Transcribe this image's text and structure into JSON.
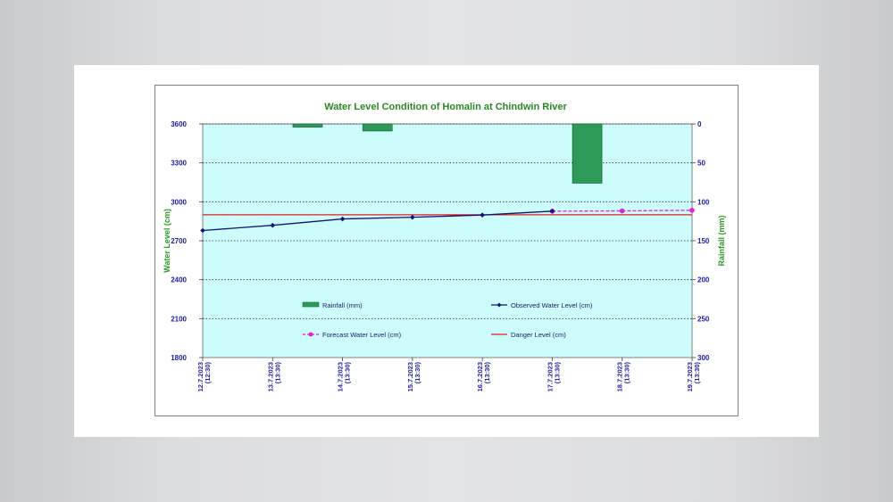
{
  "chart_data": {
    "type": "bar+line",
    "title": "Water Level Condition of Homalin at Chindwin River",
    "ylabel_left": "Water Level (cm)",
    "ylabel_right": "Rainfall (mm)",
    "ylim_left": [
      1800,
      3600
    ],
    "yticks_left": [
      1800,
      2100,
      2400,
      2700,
      3000,
      3300,
      3600
    ],
    "ylim_right": [
      300,
      0
    ],
    "yticks_right": [
      0,
      50,
      100,
      150,
      200,
      250,
      300
    ],
    "right_axis_inverted": true,
    "grid": "horizontal dotted",
    "categories": [
      [
        "12.7.2023",
        "(12:30)"
      ],
      [
        "13.7.2023",
        "(13:30)"
      ],
      [
        "14.7.2023",
        "(13:30)"
      ],
      [
        "15.7.2023",
        "(13:30)"
      ],
      [
        "16.7.2023",
        "(13:30)"
      ],
      [
        "17.7.2023",
        "(13:30)"
      ],
      [
        "18.7.2023",
        "(13:30)"
      ],
      [
        "19.7.2023",
        "(13:30)"
      ]
    ],
    "series": [
      {
        "name": "Rainfall (mm)",
        "type": "bar",
        "axis": "right",
        "values": [
          0,
          4,
          9,
          0,
          0,
          76,
          0,
          0
        ]
      },
      {
        "name": "Observed Water Level (cm)",
        "type": "line",
        "axis": "left",
        "values": [
          2779,
          2819,
          2868,
          2881,
          2898,
          2928,
          null,
          null
        ]
      },
      {
        "name": "Forecast Water Level (cm)",
        "type": "line",
        "axis": "left",
        "dashed": true,
        "values": [
          null,
          null,
          null,
          null,
          null,
          2928,
          2930,
          2935
        ]
      },
      {
        "name": "Danger Level (cm)",
        "type": "line",
        "axis": "left",
        "values": [
          2900,
          2900,
          2900,
          2900,
          2900,
          2900,
          2900,
          2900
        ]
      }
    ],
    "colors": {
      "plot_background": "#ccfcfc",
      "rainfall": "#2e9a5a",
      "observed": "#141470",
      "forecast": "#e020e0",
      "danger": "#e02020",
      "title": "#2a8a22",
      "ticks": "#2020a0"
    },
    "legend": {
      "placement": "inside-bottom",
      "entries": [
        "Rainfall (mm)",
        "Observed Water Level (cm)",
        "Forecast Water Level (cm)",
        "Danger Level (cm)"
      ]
    }
  }
}
